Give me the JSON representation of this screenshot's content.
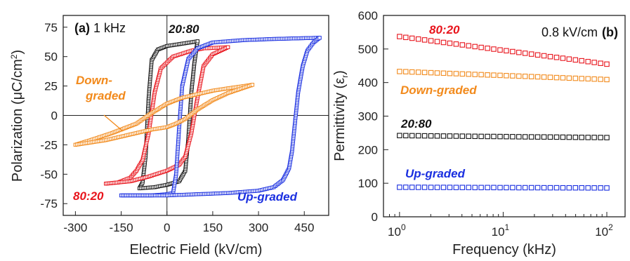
{
  "colors": {
    "black": "#111111",
    "red": "#e8141c",
    "blue": "#1a2fe0",
    "orange": "#f28a1c"
  },
  "chart_data": [
    {
      "type": "line",
      "panel": "(a)",
      "panel_label": "(a)",
      "condition_label": "1 kHz",
      "xlabel": "Electric Field (kV/cm)",
      "ylabel_main": "Polarization (",
      "ylabel_unit": "μC/cm",
      "ylabel_sup": "2",
      "ylabel_end": ")",
      "xlim": [
        -340,
        530
      ],
      "ylim": [
        -85,
        85
      ],
      "x_ticks": [
        -300,
        -150,
        0,
        150,
        300,
        450
      ],
      "y_ticks": [
        -75,
        -50,
        -25,
        0,
        25,
        50,
        75
      ],
      "x_tick_labels": [
        "-300",
        "-150",
        "0",
        "150",
        "300",
        "450"
      ],
      "y_tick_labels": [
        "-75",
        "-50",
        "-25",
        "0",
        "25",
        "50",
        "75"
      ],
      "zero_lines": true,
      "series": [
        {
          "name": "20:80",
          "color_key": "black",
          "upper": [
            [
              -90,
              -62
            ],
            [
              -80,
              -57
            ],
            [
              -70,
              -35
            ],
            [
              -60,
              15
            ],
            [
              -50,
              47
            ],
            [
              -30,
              56
            ],
            [
              0,
              59
            ],
            [
              50,
              61
            ],
            [
              100,
              63
            ]
          ],
          "lower": [
            [
              -90,
              -62
            ],
            [
              -40,
              -61
            ],
            [
              0,
              -59
            ],
            [
              40,
              -56
            ],
            [
              60,
              -47
            ],
            [
              70,
              -20
            ],
            [
              80,
              20
            ],
            [
              90,
              45
            ],
            [
              100,
              63
            ]
          ]
        },
        {
          "name": "80:20",
          "color_key": "red",
          "upper": [
            [
              -200,
              -58
            ],
            [
              -160,
              -57
            ],
            [
              -120,
              -53
            ],
            [
              -100,
              -47
            ],
            [
              -80,
              -38
            ],
            [
              -60,
              -15
            ],
            [
              -40,
              20
            ],
            [
              -20,
              40
            ],
            [
              20,
              50
            ],
            [
              80,
              55
            ],
            [
              120,
              57
            ],
            [
              200,
              58
            ]
          ],
          "lower": [
            [
              -200,
              -58
            ],
            [
              -120,
              -56
            ],
            [
              -60,
              -52
            ],
            [
              0,
              -47
            ],
            [
              40,
              -42
            ],
            [
              60,
              -35
            ],
            [
              80,
              -15
            ],
            [
              100,
              15
            ],
            [
              120,
              42
            ],
            [
              150,
              52
            ],
            [
              200,
              58
            ]
          ]
        },
        {
          "name": "Up-graded",
          "color_key": "blue",
          "upper": [
            [
              -150,
              -68
            ],
            [
              -50,
              -68
            ],
            [
              0,
              -67
            ],
            [
              20,
              -66
            ],
            [
              30,
              -50
            ],
            [
              40,
              -10
            ],
            [
              50,
              25
            ],
            [
              70,
              48
            ],
            [
              100,
              57
            ],
            [
              150,
              62
            ],
            [
              250,
              64
            ],
            [
              350,
              65
            ],
            [
              500,
              66
            ]
          ],
          "lower": [
            [
              -150,
              -68
            ],
            [
              0,
              -68
            ],
            [
              100,
              -67
            ],
            [
              200,
              -66
            ],
            [
              300,
              -64
            ],
            [
              350,
              -61
            ],
            [
              380,
              -55
            ],
            [
              400,
              -45
            ],
            [
              410,
              -30
            ],
            [
              420,
              -5
            ],
            [
              430,
              20
            ],
            [
              445,
              42
            ],
            [
              460,
              55
            ],
            [
              480,
              62
            ],
            [
              500,
              66
            ]
          ]
        },
        {
          "name": "Down-graded",
          "color_key": "orange",
          "upper": [
            [
              -300,
              -25
            ],
            [
              -250,
              -21
            ],
            [
              -180,
              -15
            ],
            [
              -100,
              -7
            ],
            [
              -50,
              2
            ],
            [
              0,
              10
            ],
            [
              50,
              15
            ],
            [
              100,
              18
            ],
            [
              150,
              21
            ],
            [
              200,
              23
            ],
            [
              280,
              26
            ]
          ],
          "lower": [
            [
              -300,
              -25
            ],
            [
              -250,
              -23
            ],
            [
              -200,
              -21
            ],
            [
              -150,
              -18
            ],
            [
              -100,
              -15
            ],
            [
              -50,
              -12
            ],
            [
              0,
              -10
            ],
            [
              30,
              -7
            ],
            [
              60,
              -3
            ],
            [
              100,
              5
            ],
            [
              150,
              13
            ],
            [
              200,
              19
            ],
            [
              280,
              26
            ]
          ]
        }
      ],
      "labels": {
        "s2080": "20:80",
        "s8020": "80:20",
        "down1": "Down-",
        "down2": "graded",
        "up": "Up-graded"
      }
    },
    {
      "type": "scatter",
      "panel": "(b)",
      "panel_label": "(b)",
      "condition_label": "0.8 kV/cm",
      "xlabel": "Frequency (kHz)",
      "ylabel_main": "Permittivity (ε",
      "ylabel_sub": "r",
      "ylabel_end": ")",
      "x_scale": "log",
      "xlim": [
        0.7,
        150
      ],
      "ylim": [
        0,
        600
      ],
      "x_ticks": [
        1,
        10,
        100
      ],
      "x_tick_labels": [
        {
          "base": "10",
          "exp": "0"
        },
        {
          "base": "10",
          "exp": "1"
        },
        {
          "base": "10",
          "exp": "2"
        }
      ],
      "y_ticks": [
        0,
        100,
        200,
        300,
        400,
        500,
        600
      ],
      "y_tick_labels": [
        "0",
        "100",
        "200",
        "300",
        "400",
        "500",
        "600"
      ],
      "n_points": 34,
      "x_range": [
        1,
        100
      ],
      "series": [
        {
          "name": "80:20",
          "color_key": "red",
          "y_start": 537,
          "y_end": 455
        },
        {
          "name": "Down-graded",
          "color_key": "orange",
          "y_start": 433,
          "y_end": 409
        },
        {
          "name": "20:80",
          "color_key": "black",
          "y_start": 242,
          "y_end": 236
        },
        {
          "name": "Up-graded",
          "color_key": "blue",
          "y_start": 88,
          "y_end": 86
        }
      ],
      "labels": {
        "s8020": "80:20",
        "down": "Down-graded",
        "s2080": "20:80",
        "up": "Up-graded"
      }
    }
  ]
}
